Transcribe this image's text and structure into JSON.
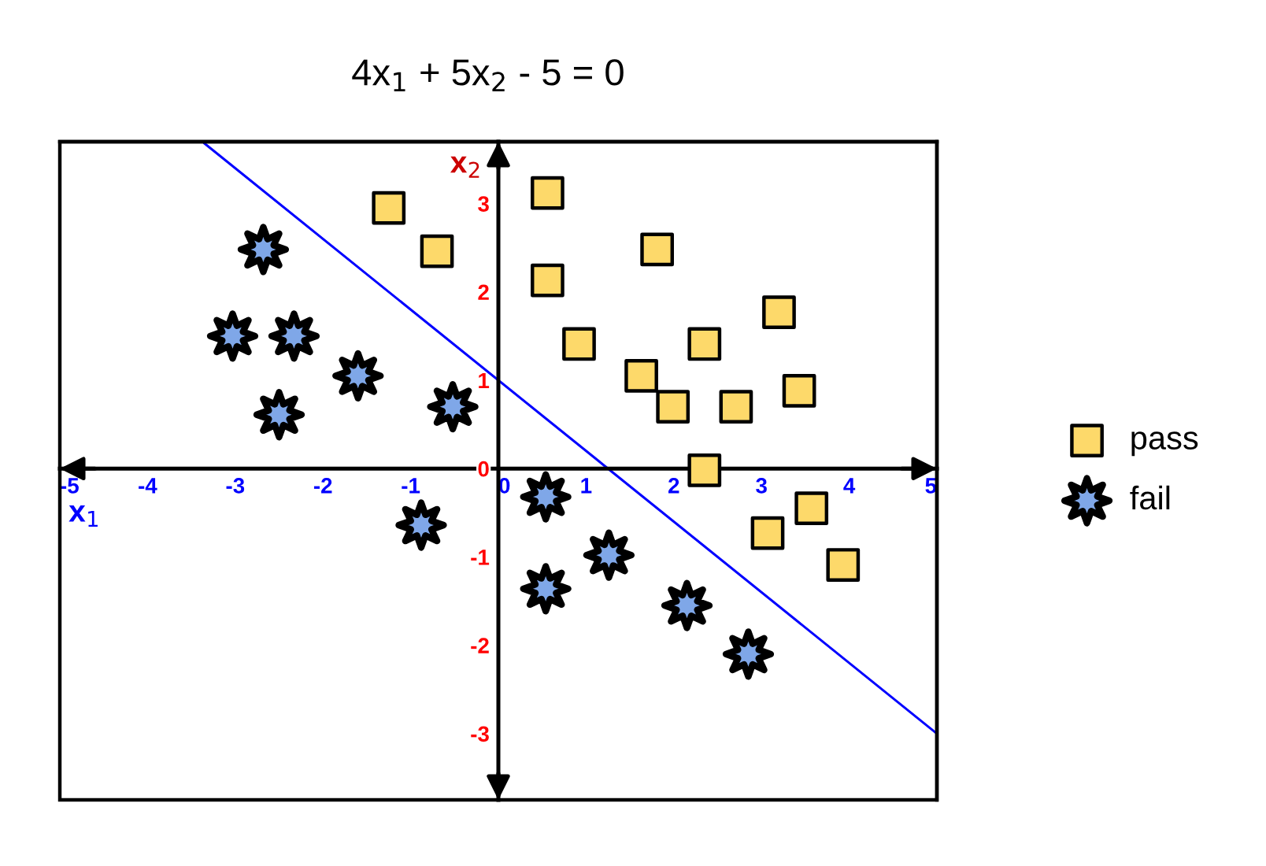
{
  "chart_data": {
    "type": "scatter",
    "title": "4x$_{1}$ + 5x$_{2}$ - 5 = 0",
    "xlabel": "x$_{1}$",
    "ylabel": "x$_{2}$",
    "xlim": [
      -5,
      5
    ],
    "ylim": [
      -3.75,
      3.7
    ],
    "xticks": [
      -5,
      -4,
      -3,
      -2,
      -1,
      0,
      1,
      2,
      3,
      4,
      5
    ],
    "yticks": [
      -3,
      -2,
      -1,
      0,
      1,
      2,
      3
    ],
    "grid": false,
    "legend": "right",
    "series": [
      {
        "name": "pass",
        "color": "#fdd96a",
        "marker": "square",
        "x": [
          -1.25,
          -0.7,
          0.56,
          0.56,
          0.92,
          1.81,
          2.35,
          3.2,
          1.63,
          1.99,
          2.71,
          3.43,
          2.35,
          3.07,
          3.57,
          3.93
        ],
        "values": [
          2.95,
          2.46,
          3.12,
          2.13,
          1.41,
          2.48,
          1.41,
          1.77,
          1.05,
          0.7,
          0.7,
          0.88,
          -0.02,
          -0.73,
          -0.45,
          -1.09
        ]
      },
      {
        "name": "fail",
        "color": "#7fa7e8",
        "marker": "star",
        "x": [
          -2.68,
          -3.03,
          -2.33,
          -2.5,
          -1.6,
          -0.52,
          -0.88,
          0.54,
          0.54,
          1.26,
          2.15,
          2.85
        ],
        "values": [
          2.48,
          1.5,
          1.5,
          0.61,
          1.05,
          0.7,
          -0.64,
          -0.32,
          -1.36,
          -0.98,
          -1.55,
          -2.1
        ]
      },
      {
        "type": "line",
        "color": "#0000ff",
        "marker": "none",
        "x": [
          -3.35,
          5
        ],
        "values": [
          3.68,
          -3
        ]
      }
    ]
  }
}
